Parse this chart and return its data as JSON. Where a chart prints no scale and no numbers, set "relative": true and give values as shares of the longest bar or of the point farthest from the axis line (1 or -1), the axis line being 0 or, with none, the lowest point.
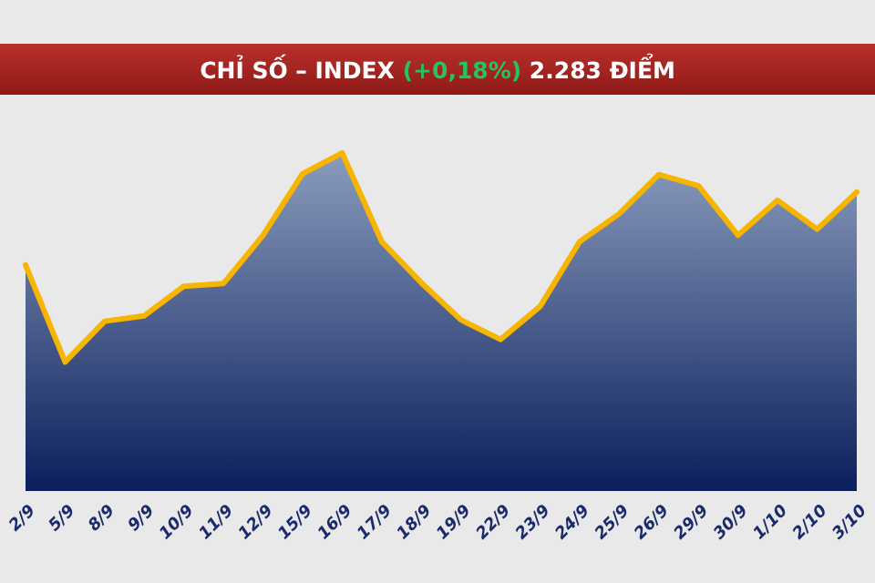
{
  "chart_data": {
    "type": "area",
    "title": "CHỈ SỐ – INDEX (+0,18%) 2.283 ĐIỂM",
    "relative": true,
    "categories": [
      "2/9",
      "5/9",
      "8/9",
      "9/9",
      "10/9",
      "11/9",
      "12/9",
      "15/9",
      "16/9",
      "17/9",
      "18/9",
      "19/9",
      "22/9",
      "23/9",
      "24/9",
      "25/9",
      "26/9",
      "29/9",
      "30/9",
      "1/10",
      "2/10",
      "3/10"
    ],
    "series": [
      {
        "color": "#f7b500",
        "values": [
          0.668,
          0.38,
          0.501,
          0.517,
          0.605,
          0.613,
          0.756,
          0.939,
          1,
          0.737,
          0.615,
          0.505,
          0.447,
          0.545,
          0.737,
          0.82,
          0.936,
          0.903,
          0.756,
          0.86,
          0.774,
          0.884
        ]
      }
    ]
  }
}
